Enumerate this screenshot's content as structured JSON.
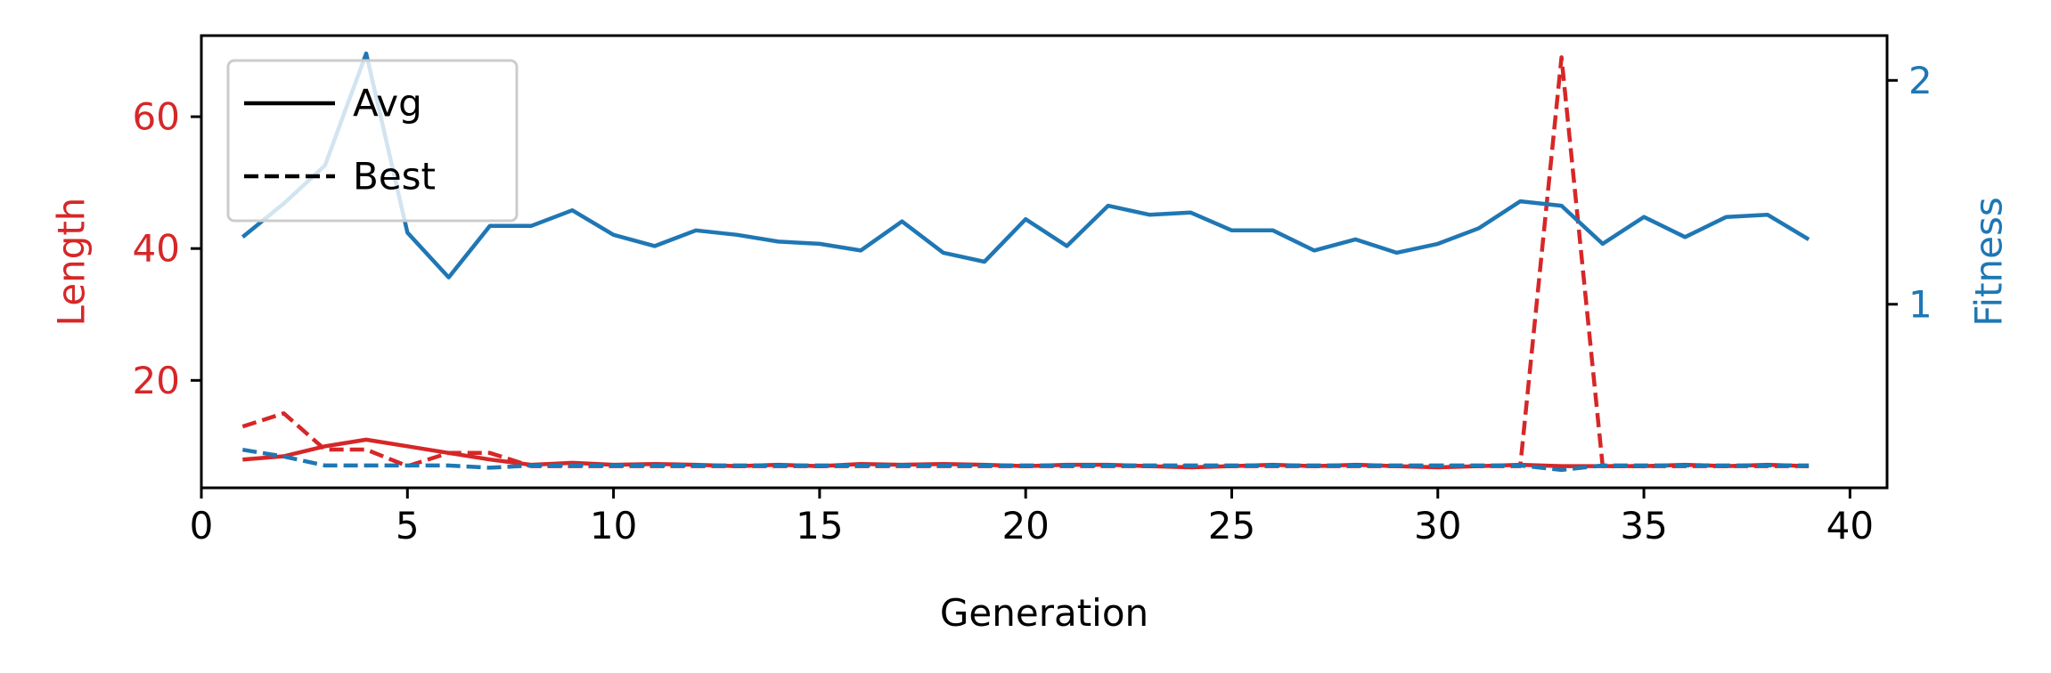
{
  "chart_data": {
    "type": "line",
    "xlabel": "Generation",
    "ylabel_left": "Length",
    "ylabel_right": "Fitness",
    "xlim": [
      0,
      40.9
    ],
    "ylim_left": [
      3.7,
      72.3
    ],
    "ylim_right": [
      0.18,
      2.2
    ],
    "xticks": [
      0,
      5,
      10,
      15,
      20,
      25,
      30,
      35,
      40
    ],
    "yticks_left": [
      20,
      40,
      60
    ],
    "yticks_right": [
      1,
      2
    ],
    "legend": {
      "position": "top-left",
      "entries": [
        {
          "label": "Avg",
          "style": "solid"
        },
        {
          "label": "Best",
          "style": "dashed"
        }
      ]
    },
    "colors": {
      "length": "#d62728",
      "fitness": "#1f77b4",
      "axes": "#000000"
    },
    "x": [
      1,
      2,
      3,
      4,
      5,
      6,
      7,
      8,
      9,
      10,
      11,
      12,
      13,
      14,
      15,
      16,
      17,
      18,
      19,
      20,
      21,
      22,
      23,
      24,
      25,
      26,
      27,
      28,
      29,
      30,
      31,
      32,
      33,
      34,
      35,
      36,
      37,
      38,
      39
    ],
    "series": [
      {
        "name": "Avg",
        "metric": "Length",
        "axis": "left",
        "style": "solid",
        "color": "#d62728",
        "values": [
          8.0,
          8.5,
          10.0,
          11.0,
          10.0,
          9.0,
          8.0,
          7.2,
          7.5,
          7.2,
          7.3,
          7.2,
          7.0,
          7.2,
          7.0,
          7.3,
          7.2,
          7.3,
          7.2,
          7.0,
          7.2,
          7.2,
          7.0,
          6.8,
          7.0,
          7.2,
          7.0,
          7.2,
          7.0,
          6.8,
          7.0,
          7.2,
          7.0,
          7.0,
          7.0,
          7.2,
          7.0,
          7.2,
          7.0
        ]
      },
      {
        "name": "Best",
        "metric": "Length",
        "axis": "left",
        "style": "dashed",
        "color": "#d62728",
        "values": [
          13.0,
          15.0,
          9.5,
          9.5,
          7.0,
          9.0,
          9.0,
          7.0,
          7.0,
          7.0,
          7.0,
          7.0,
          7.0,
          7.0,
          7.0,
          7.0,
          7.0,
          7.0,
          7.0,
          7.0,
          7.0,
          7.0,
          7.0,
          7.0,
          7.0,
          7.0,
          7.0,
          7.0,
          7.0,
          7.0,
          7.0,
          7.0,
          69.0,
          7.0,
          7.0,
          7.0,
          7.0,
          7.0,
          7.0
        ]
      },
      {
        "name": "Avg",
        "metric": "Fitness",
        "axis": "right",
        "style": "solid",
        "color": "#1f77b4",
        "values": [
          1.3,
          1.45,
          1.62,
          2.12,
          1.32,
          1.12,
          1.35,
          1.35,
          1.42,
          1.31,
          1.26,
          1.33,
          1.31,
          1.28,
          1.27,
          1.24,
          1.37,
          1.23,
          1.19,
          1.38,
          1.26,
          1.44,
          1.4,
          1.41,
          1.33,
          1.33,
          1.24,
          1.29,
          1.23,
          1.27,
          1.34,
          1.46,
          1.44,
          1.27,
          1.39,
          1.3,
          1.39,
          1.4,
          1.29
        ]
      },
      {
        "name": "Best",
        "metric": "Fitness",
        "axis": "right",
        "style": "dashed",
        "color": "#1f77b4",
        "values": [
          0.35,
          0.32,
          0.28,
          0.28,
          0.28,
          0.28,
          0.27,
          0.28,
          0.28,
          0.28,
          0.28,
          0.28,
          0.28,
          0.28,
          0.28,
          0.28,
          0.28,
          0.28,
          0.28,
          0.28,
          0.28,
          0.28,
          0.28,
          0.28,
          0.28,
          0.28,
          0.28,
          0.28,
          0.28,
          0.28,
          0.28,
          0.28,
          0.26,
          0.28,
          0.28,
          0.28,
          0.28,
          0.28,
          0.28
        ]
      }
    ]
  }
}
